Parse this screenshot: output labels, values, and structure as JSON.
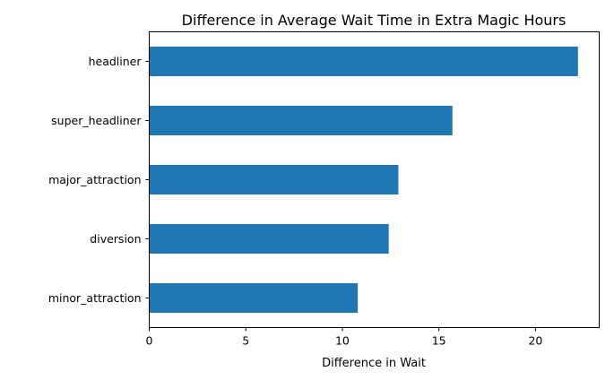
{
  "chart_data": {
    "type": "bar",
    "orientation": "horizontal",
    "title": "Difference in Average Wait Time in Extra Magic Hours",
    "xlabel": "Difference in Wait",
    "ylabel": "",
    "categories": [
      "headliner",
      "super_headliner",
      "major_attraction",
      "diversion",
      "minor_attraction"
    ],
    "values": [
      22.2,
      15.7,
      12.9,
      12.4,
      10.8
    ],
    "xlim": [
      0,
      23.3
    ],
    "xticks": [
      0,
      5,
      10,
      15,
      20
    ],
    "grid": false,
    "legend": "none",
    "bar_color": "#1f77b4"
  }
}
